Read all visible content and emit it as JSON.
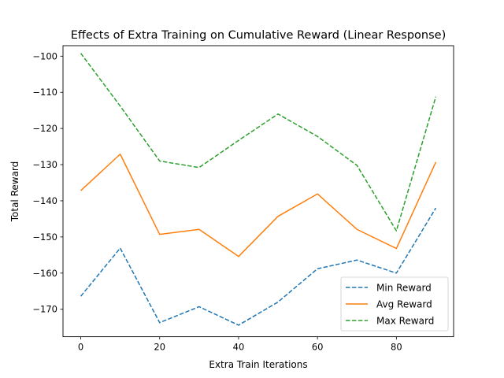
{
  "chart_data": {
    "type": "line",
    "title": "Effects of Extra Training on Cumulative Reward (Linear Response)",
    "xlabel": "Extra Train Iterations",
    "ylabel": "Total Reward",
    "x": [
      0,
      10,
      20,
      30,
      40,
      50,
      60,
      70,
      80,
      90
    ],
    "xlim": [
      -4.5,
      94.5
    ],
    "ylim": [
      -177.6,
      -97.1
    ],
    "xticks": [
      0,
      20,
      40,
      60,
      80
    ],
    "yticks": [
      -100,
      -110,
      -120,
      -130,
      -140,
      -150,
      -160,
      -170
    ],
    "xtick_labels": [
      "0",
      "20",
      "40",
      "60",
      "80"
    ],
    "ytick_labels": [
      "−100",
      "−110",
      "−120",
      "−130",
      "−140",
      "−150",
      "−160",
      "−170"
    ],
    "grid": false,
    "legend_position": "lower-right",
    "series": [
      {
        "name": "Min Reward",
        "color": "#1f77b4",
        "style": "dashed",
        "values": [
          -166.4,
          -153.1,
          -173.7,
          -169.3,
          -174.4,
          -168.0,
          -158.8,
          -156.4,
          -160.0,
          -142.0
        ]
      },
      {
        "name": "Avg Reward",
        "color": "#ff7f0e",
        "style": "solid",
        "values": [
          -137.2,
          -127.1,
          -149.3,
          -147.9,
          -155.4,
          -144.3,
          -138.1,
          -147.9,
          -153.2,
          -129.3
        ]
      },
      {
        "name": "Max Reward",
        "color": "#2ca02c",
        "style": "dashed",
        "values": [
          -99.2,
          -113.8,
          -129.0,
          -130.8,
          -123.3,
          -116.0,
          -122.2,
          -130.2,
          -148.3,
          -111.2
        ]
      }
    ]
  }
}
